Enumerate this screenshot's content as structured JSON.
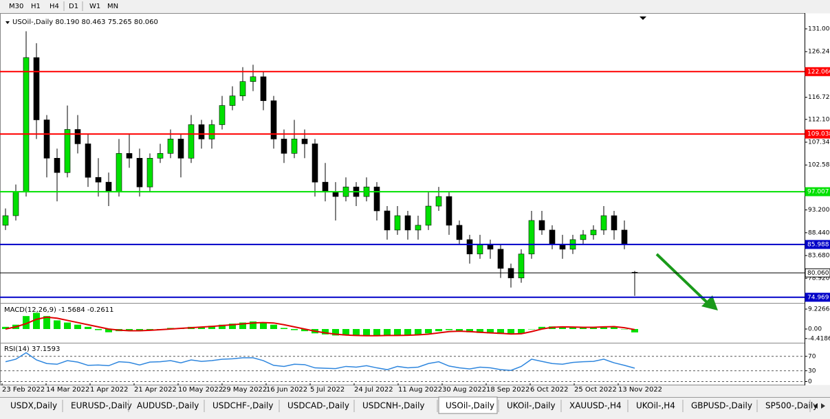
{
  "toolbar": {
    "timeframes": [
      "M30",
      "H1",
      "H4",
      "D1",
      "W1",
      "MN"
    ]
  },
  "chart_data": [
    {
      "type": "candlestick",
      "header": "USOil-,Daily  80.190 80.463 75.265 80.060",
      "up_color": "#00e000",
      "down_color": "#000000",
      "candles": [
        [
          90,
          93.5,
          89,
          92
        ],
        [
          92,
          98.5,
          91,
          97
        ],
        [
          97,
          130.5,
          96,
          125
        ],
        [
          125,
          128,
          108,
          112
        ],
        [
          112,
          113,
          100,
          104
        ],
        [
          104,
          106,
          95,
          101
        ],
        [
          101,
          115,
          100,
          110
        ],
        [
          110,
          113,
          105,
          107
        ],
        [
          107,
          109,
          98,
          100
        ],
        [
          100,
          104,
          96,
          99
        ],
        [
          99,
          101,
          94,
          97
        ],
        [
          97,
          108,
          96,
          105
        ],
        [
          105,
          109,
          102,
          104
        ],
        [
          104,
          106,
          96,
          98
        ],
        [
          98,
          105,
          97,
          104
        ],
        [
          104,
          107,
          103,
          105
        ],
        [
          105,
          110,
          104,
          108
        ],
        [
          108,
          109,
          100,
          104
        ],
        [
          104,
          113,
          103,
          111
        ],
        [
          111,
          112,
          106,
          108
        ],
        [
          108,
          112,
          106,
          111
        ],
        [
          111,
          117,
          110,
          115
        ],
        [
          115,
          119,
          114,
          117
        ],
        [
          117,
          123,
          116,
          120
        ],
        [
          120,
          123.5,
          118,
          121
        ],
        [
          121,
          122,
          114,
          116
        ],
        [
          116,
          117,
          106,
          108
        ],
        [
          108,
          110,
          103,
          105
        ],
        [
          105,
          112,
          104,
          108
        ],
        [
          108,
          110,
          104,
          107
        ],
        [
          107,
          108,
          96,
          99
        ],
        [
          99,
          103,
          95,
          97
        ],
        [
          97,
          99,
          91,
          96
        ],
        [
          96,
          100,
          95,
          98
        ],
        [
          98,
          99,
          94,
          96
        ],
        [
          96,
          100,
          95,
          98
        ],
        [
          98,
          99,
          91,
          93
        ],
        [
          93,
          94,
          87,
          89
        ],
        [
          89,
          94,
          88,
          92
        ],
        [
          92,
          93,
          87,
          89
        ],
        [
          89,
          92,
          87,
          90
        ],
        [
          90,
          97,
          89,
          94
        ],
        [
          94,
          98,
          93,
          96
        ],
        [
          96,
          97,
          88,
          90
        ],
        [
          90,
          91,
          86,
          87
        ],
        [
          87,
          88,
          82,
          84
        ],
        [
          84,
          88,
          83,
          86
        ],
        [
          86,
          87,
          83,
          85
        ],
        [
          85,
          86,
          79,
          81
        ],
        [
          81,
          82,
          77,
          79
        ],
        [
          79,
          85,
          78,
          84
        ],
        [
          84,
          93,
          83,
          91
        ],
        [
          91,
          93,
          88,
          89
        ],
        [
          89,
          90,
          85,
          86
        ],
        [
          86,
          88,
          83,
          85
        ],
        [
          85,
          88,
          84,
          87
        ],
        [
          87,
          89,
          86,
          88
        ],
        [
          88,
          90,
          87,
          89
        ],
        [
          89,
          94,
          88,
          92
        ],
        [
          92,
          93,
          87,
          89
        ],
        [
          89,
          91,
          85,
          86
        ],
        [
          80.19,
          80.463,
          75.265,
          80.06
        ]
      ],
      "ylim": [
        73.79,
        133.58
      ],
      "yticks": [
        {
          "value": 131,
          "label": "131.000"
        },
        {
          "value": 126.24,
          "label": "126.240"
        },
        {
          "value": 116.72,
          "label": "116.720"
        },
        {
          "value": 112.1,
          "label": "112.100"
        },
        {
          "value": 107.34,
          "label": "107.340"
        },
        {
          "value": 102.58,
          "label": "102.580"
        },
        {
          "value": 93.2,
          "label": "93.200"
        },
        {
          "value": 88.44,
          "label": "88.440"
        },
        {
          "value": 83.68,
          "label": "83.680"
        },
        {
          "value": 78.92,
          "label": "78.920"
        }
      ],
      "levels": [
        {
          "price": 122.066,
          "label": "122.066",
          "color": "#ff0000"
        },
        {
          "price": 109.038,
          "label": "109.038",
          "color": "#ff0000"
        },
        {
          "price": 97.007,
          "label": "97.007",
          "color": "#00e000"
        },
        {
          "price": 85.988,
          "label": "85.988",
          "color": "#0000c8"
        },
        {
          "price": 74.969,
          "label": "74.969",
          "color": "#0000c8"
        },
        {
          "price": 80.06,
          "label": "80.060",
          "color": "#000000"
        }
      ],
      "x_labels": [
        "23 Feb 2022",
        "14 Mar 2022",
        "1 Apr 2022",
        "21 Apr 2022",
        "10 May 2022",
        "29 May 2022",
        "16 Jun 2022",
        "5 Jul 2022",
        "24 Jul 2022",
        "11 Aug 2022",
        "30 Aug 2022",
        "18 Sep 2022",
        "6 Oct 2022",
        "25 Oct 2022",
        "13 Nov 2022"
      ]
    },
    {
      "type": "macd",
      "label": "MACD(12,26,9) -1.5684 -0.2611",
      "hist_color": "#00e000",
      "signal_color": "#e00000",
      "histogram": [
        1,
        2,
        6,
        7.5,
        6,
        4,
        3,
        2,
        1,
        -0.5,
        -1.5,
        -1,
        -0.5,
        -1,
        -0.5,
        0,
        0.5,
        0.5,
        1,
        1,
        1.5,
        2,
        2.5,
        3,
        3.5,
        3,
        2,
        0.5,
        -0.5,
        -1,
        -2,
        -2.5,
        -3,
        -3,
        -3.2,
        -3,
        -3,
        -3,
        -2.8,
        -2.8,
        -2.5,
        -2,
        -1,
        -0.5,
        -1,
        -1.5,
        -1.8,
        -2,
        -2.3,
        -2.5,
        -2,
        0,
        1,
        1.2,
        1,
        0.8,
        0.8,
        0.8,
        1.2,
        1,
        0,
        -1.5684
      ],
      "signal": [
        0,
        1,
        2.5,
        4.5,
        5.5,
        5,
        4,
        3,
        2,
        1,
        0,
        -0.5,
        -0.8,
        -0.8,
        -0.6,
        -0.3,
        0,
        0.3,
        0.6,
        0.9,
        1.2,
        1.6,
        2,
        2.4,
        2.8,
        3,
        2.8,
        2,
        1,
        0,
        -1,
        -1.8,
        -2.4,
        -2.8,
        -3,
        -3.1,
        -3.1,
        -3,
        -3,
        -2.9,
        -2.7,
        -2.4,
        -1.8,
        -1.2,
        -1,
        -1.2,
        -1.5,
        -1.8,
        -2,
        -2.3,
        -2.2,
        -1.2,
        0,
        0.8,
        1,
        0.9,
        0.8,
        0.8,
        1,
        1.1,
        0.6,
        -0.2611
      ],
      "ylim": [
        -6.36,
        11.45
      ],
      "yticks": [
        9.2266,
        {
          "value": 0,
          "label": "0.00"
        },
        -4.4186
      ]
    },
    {
      "type": "line",
      "label": "RSI(14) 37.1593",
      "color": "#2e86de",
      "values": [
        55,
        62,
        80,
        60,
        50,
        48,
        58,
        54,
        45,
        46,
        44,
        55,
        53,
        46,
        54,
        55,
        58,
        52,
        60,
        56,
        58,
        62,
        63,
        66,
        66,
        58,
        45,
        42,
        48,
        47,
        38,
        37,
        36,
        42,
        40,
        44,
        38,
        33,
        42,
        38,
        40,
        50,
        55,
        43,
        38,
        35,
        40,
        38,
        33,
        31,
        42,
        62,
        56,
        50,
        48,
        53,
        55,
        56,
        62,
        52,
        45,
        37.1593
      ],
      "ylim": [
        0,
        100
      ],
      "yticks": [
        70,
        30,
        0
      ]
    }
  ],
  "tabs": [
    "USDX,Daily",
    "EURUSD-,Daily",
    "AUDUSD-,Daily",
    "USDCHF-,Daily",
    "USDCAD-,Daily",
    "USDCNH-,Daily",
    "USOil-,Daily",
    "UKOil-,Daily",
    "XAUUSD-,H4",
    "UKOil-,H4",
    "GBPUSD-,Daily",
    "SP500-,Daily"
  ],
  "active_tab": 6
}
